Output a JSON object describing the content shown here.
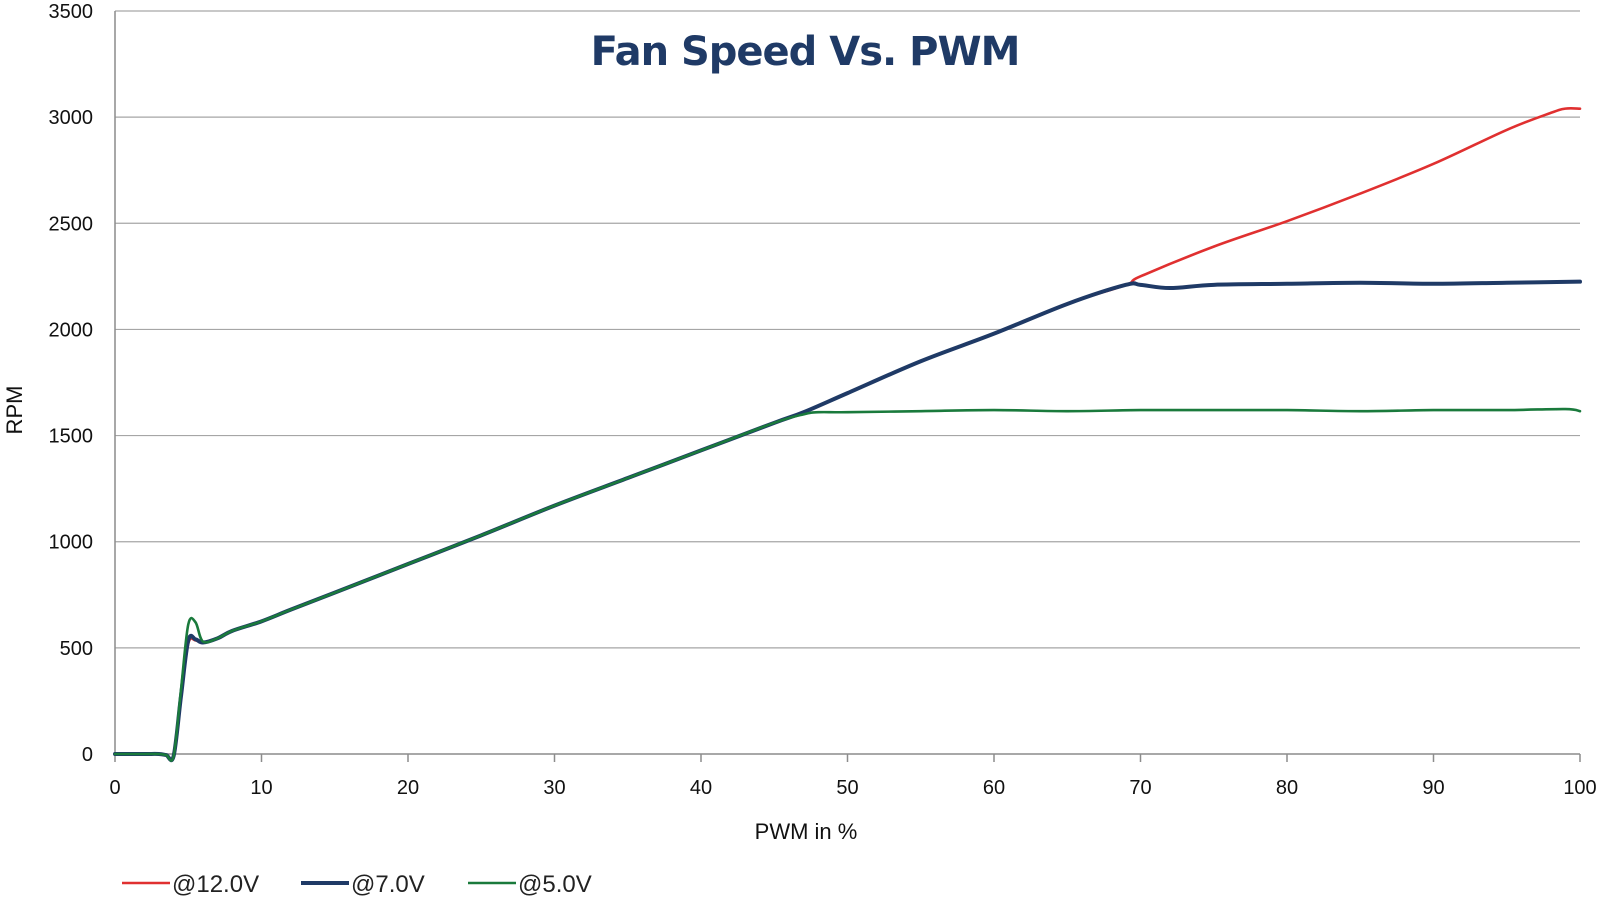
{
  "chart_data": {
    "type": "line",
    "title": "Fan Speed Vs. PWM",
    "xlabel": "PWM in %",
    "ylabel": "RPM",
    "xlim": [
      0,
      100
    ],
    "ylim": [
      0,
      3500
    ],
    "xticks": [
      0,
      10,
      20,
      30,
      40,
      50,
      60,
      70,
      80,
      90,
      100
    ],
    "yticks": [
      0,
      500,
      1000,
      1500,
      2000,
      2500,
      3000,
      3500
    ],
    "grid": "horizontal",
    "legend_position": "bottom-left",
    "series": [
      {
        "name": "@12.0V",
        "color": "#e03030",
        "x": [
          0,
          2,
          3,
          3.5,
          4,
          4.5,
          5,
          5.5,
          6,
          7,
          8,
          10,
          12,
          15,
          20,
          25,
          30,
          35,
          40,
          45,
          47,
          50,
          55,
          60,
          65,
          69,
          70,
          75,
          80,
          85,
          90,
          95,
          98,
          99,
          100
        ],
        "y": [
          0,
          0,
          0,
          -5,
          -10,
          270,
          520,
          535,
          525,
          545,
          580,
          625,
          680,
          760,
          895,
          1030,
          1170,
          1300,
          1430,
          1560,
          1610,
          1700,
          1850,
          1980,
          2120,
          2210,
          2250,
          2390,
          2510,
          2640,
          2780,
          2940,
          3020,
          3040,
          3040
        ]
      },
      {
        "name": "@7.0V",
        "color": "#1f3a66",
        "x": [
          0,
          2,
          3,
          3.5,
          4,
          4.5,
          5,
          5.5,
          6,
          7,
          8,
          10,
          12,
          15,
          20,
          25,
          30,
          35,
          40,
          45,
          47,
          50,
          55,
          60,
          65,
          69,
          70,
          72,
          75,
          80,
          85,
          90,
          95,
          100
        ],
        "y": [
          0,
          0,
          0,
          -5,
          -10,
          270,
          535,
          540,
          525,
          545,
          580,
          625,
          680,
          760,
          895,
          1030,
          1170,
          1300,
          1430,
          1560,
          1610,
          1700,
          1850,
          1980,
          2120,
          2210,
          2210,
          2195,
          2210,
          2215,
          2220,
          2215,
          2220,
          2225
        ]
      },
      {
        "name": "@5.0V",
        "color": "#1a7a3c",
        "x": [
          0,
          2,
          3,
          3.5,
          4,
          4.5,
          5,
          5.5,
          6,
          7,
          8,
          10,
          12,
          15,
          20,
          25,
          30,
          35,
          40,
          45,
          47,
          48,
          50,
          55,
          60,
          65,
          70,
          75,
          80,
          85,
          90,
          95,
          99,
          100
        ],
        "y": [
          0,
          0,
          0,
          -5,
          -10,
          300,
          610,
          620,
          530,
          545,
          580,
          625,
          680,
          760,
          895,
          1030,
          1170,
          1300,
          1430,
          1560,
          1600,
          1610,
          1610,
          1615,
          1620,
          1615,
          1620,
          1620,
          1620,
          1615,
          1620,
          1620,
          1625,
          1615
        ]
      }
    ]
  }
}
